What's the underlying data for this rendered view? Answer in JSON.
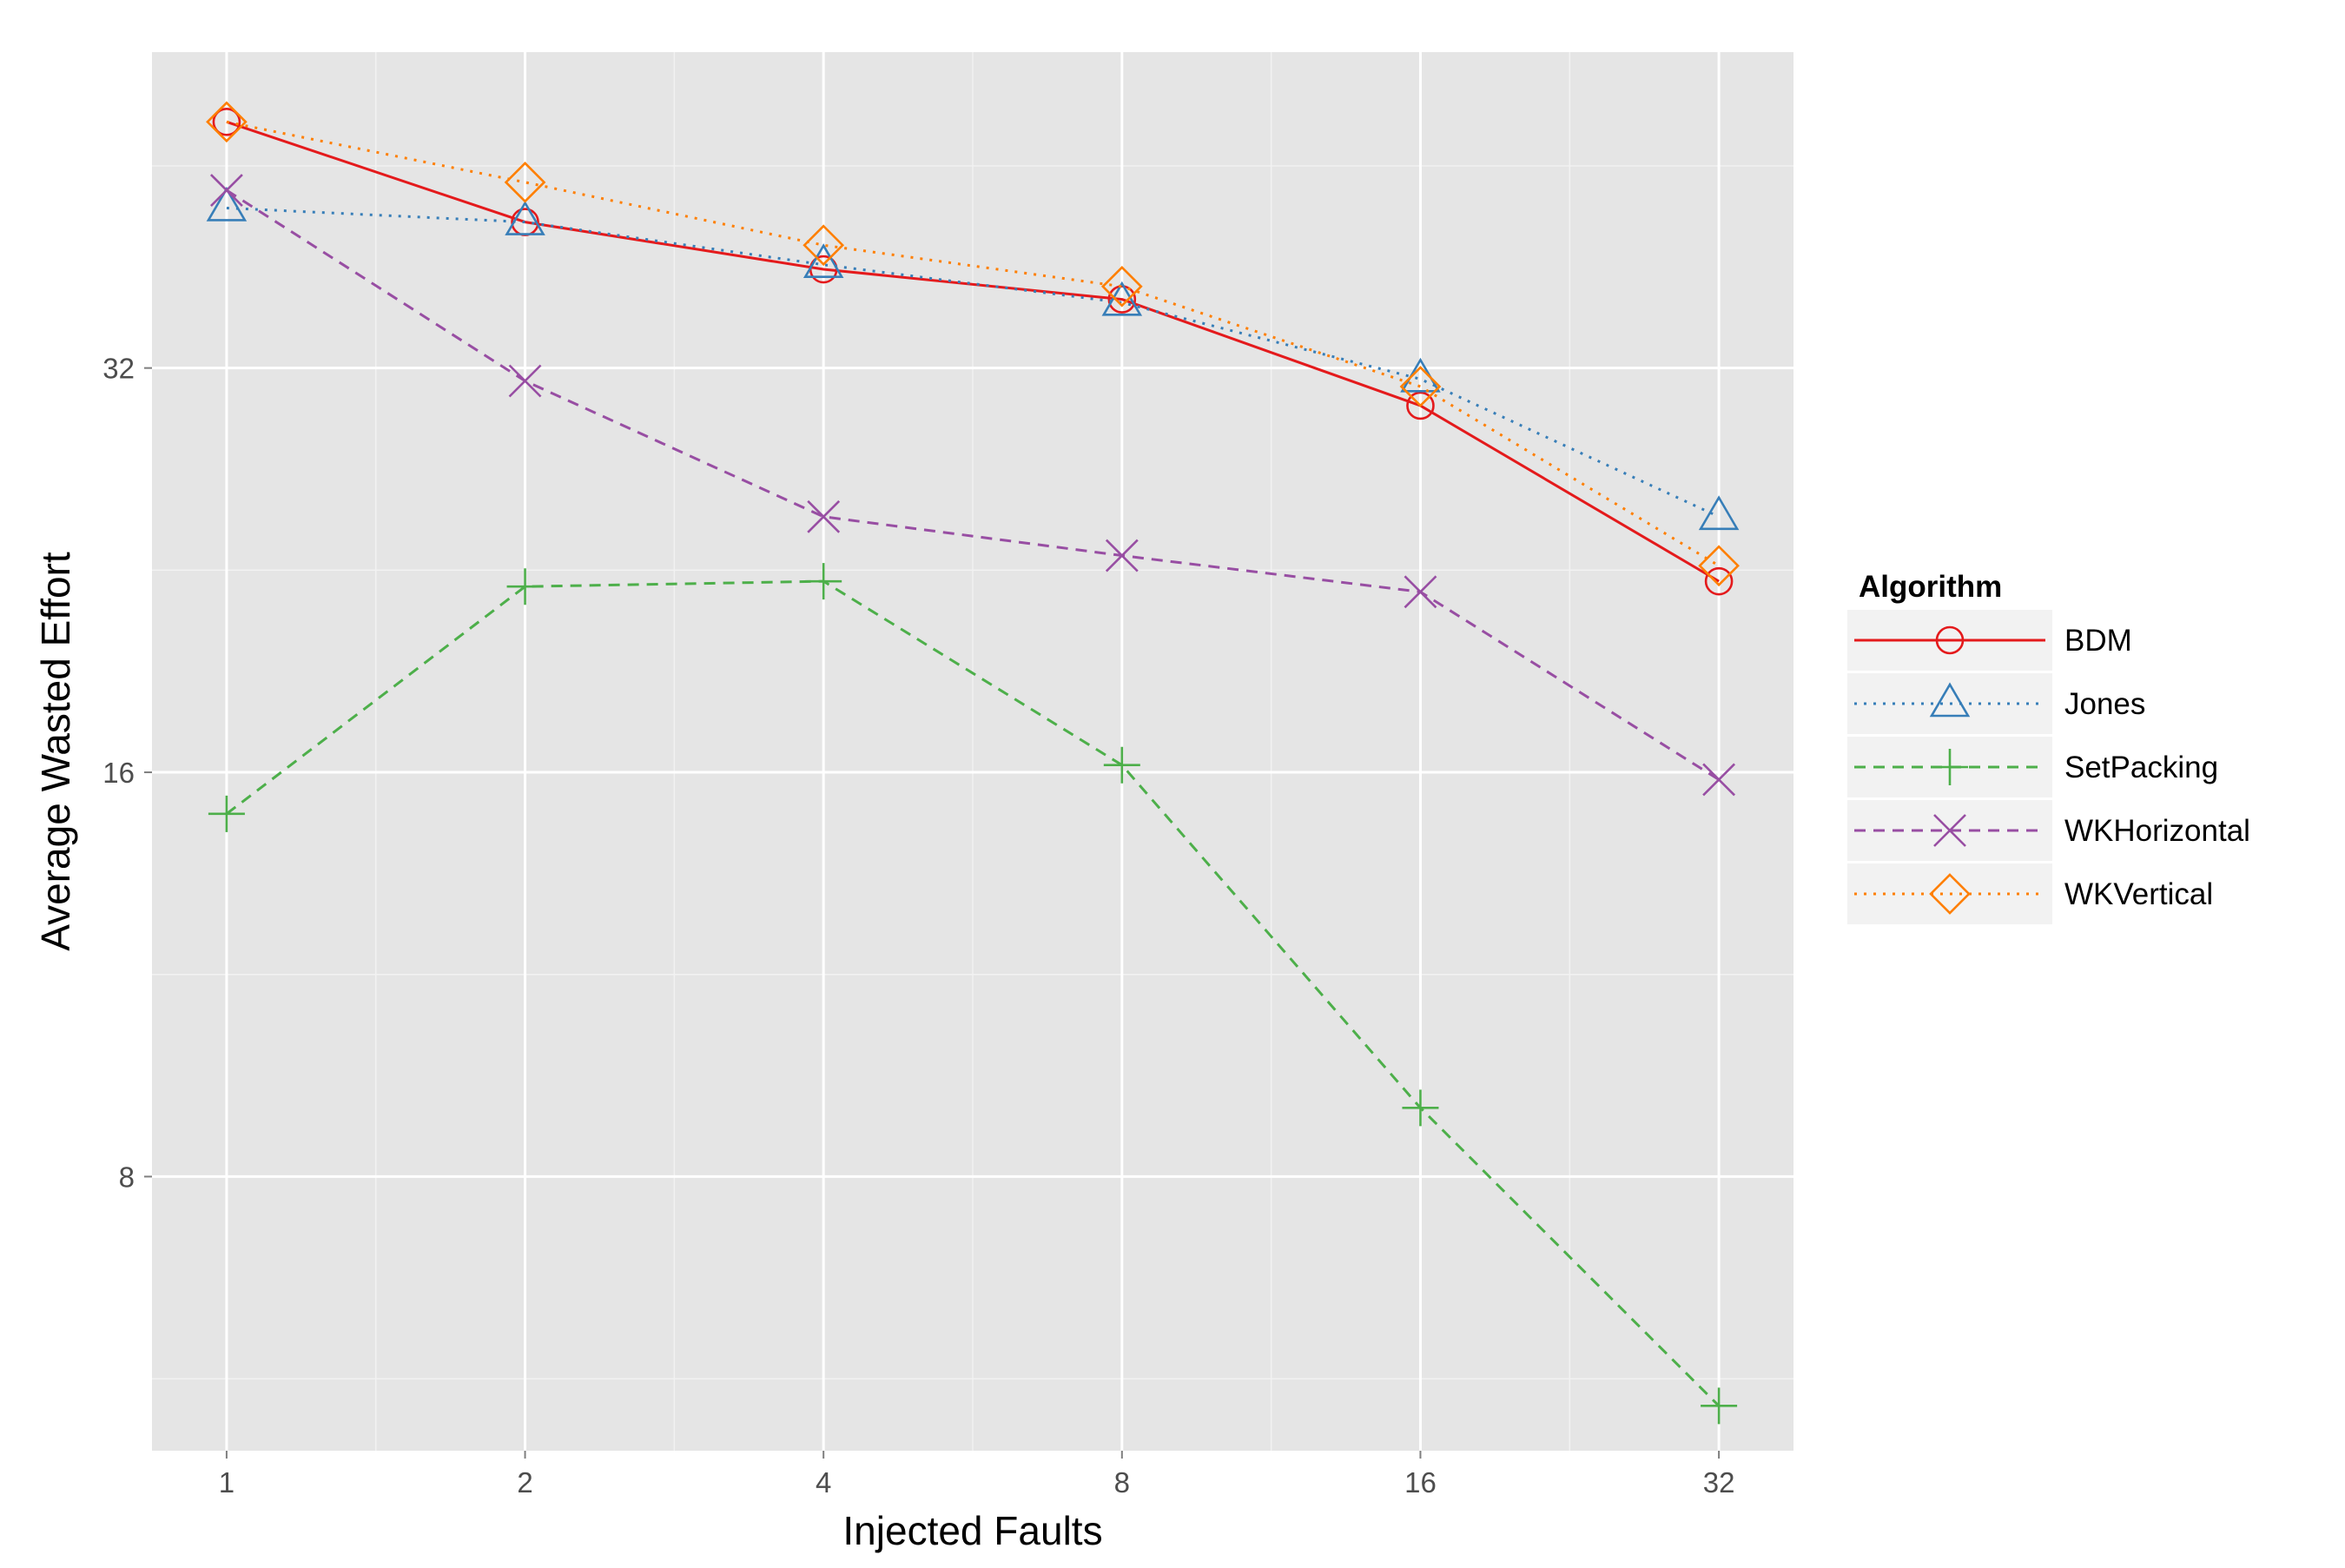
{
  "chart_data": {
    "type": "line",
    "title": "",
    "xlabel": "Injected Faults",
    "ylabel": "Average Wasted Effort",
    "x_scale": "log2",
    "y_scale": "log2",
    "categories": [
      "1",
      "2",
      "4",
      "8",
      "16",
      "32"
    ],
    "x": [
      1,
      2,
      4,
      8,
      16,
      32
    ],
    "ylim": [
      5.0,
      55.0
    ],
    "y_ticks": [
      8,
      16,
      32
    ],
    "y_tick_labels": [
      "8",
      "16",
      "32"
    ],
    "grid": true,
    "legend": {
      "title": "Algorithm",
      "placement": "right"
    },
    "series": [
      {
        "name": "BDM",
        "color": "#e41a1c",
        "line": "solid",
        "marker": "circle",
        "values": [
          48.8,
          41.1,
          37.9,
          36.0,
          30.0,
          22.2
        ]
      },
      {
        "name": "Jones",
        "color": "#377eb8",
        "line": "dotted",
        "marker": "triangle",
        "values": [
          42.1,
          41.1,
          38.2,
          35.8,
          31.4,
          24.8
        ]
      },
      {
        "name": "SetPacking",
        "color": "#4daf4a",
        "line": "dashed",
        "marker": "plus",
        "values": [
          14.9,
          22.0,
          22.2,
          16.2,
          9.0,
          5.4
        ]
      },
      {
        "name": "WKHorizontal",
        "color": "#984ea3",
        "line": "dashed",
        "marker": "cross",
        "values": [
          43.4,
          31.3,
          24.8,
          23.2,
          21.8,
          15.8
        ]
      },
      {
        "name": "WKVertical",
        "color": "#ff7f00",
        "line": "dotted",
        "marker": "diamond",
        "values": [
          48.8,
          44.0,
          39.5,
          36.8,
          31.0,
          22.8
        ]
      }
    ]
  }
}
